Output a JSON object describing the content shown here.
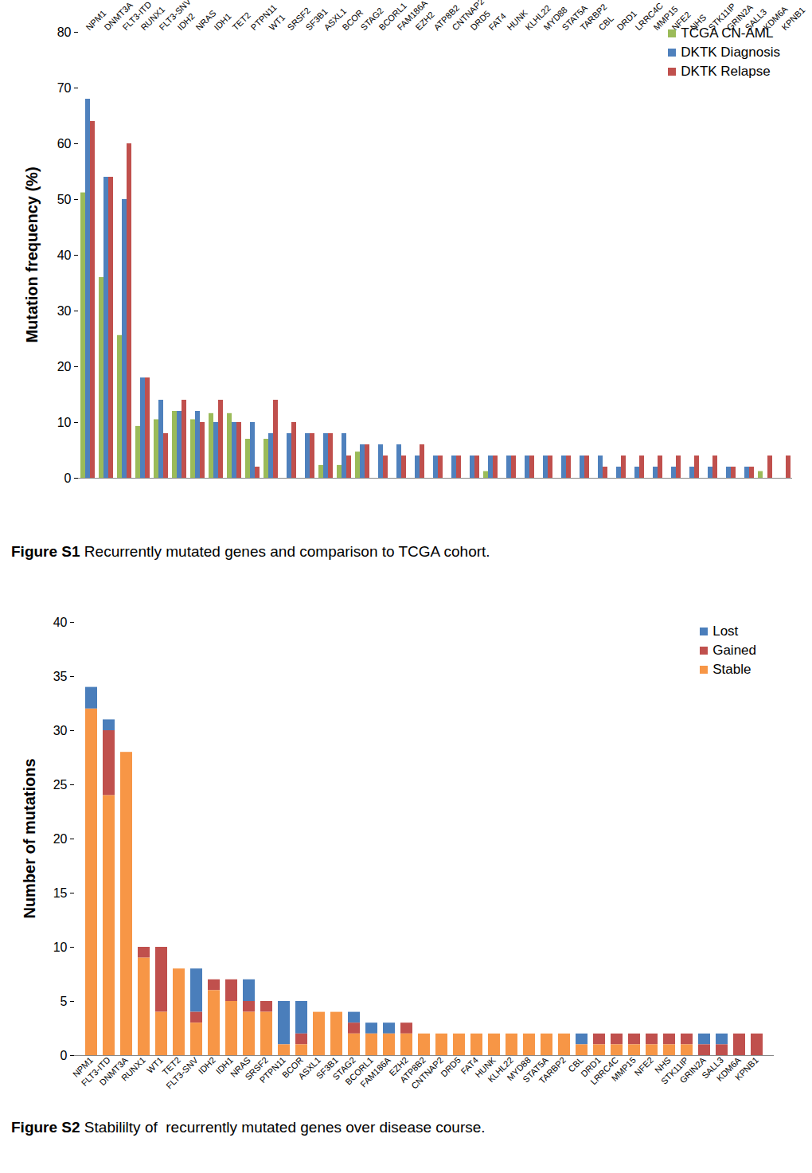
{
  "chart_data": [
    {
      "type": "bar",
      "title": "Figure S1 Recurrently mutated genes and comparison to TCGA cohort.",
      "y_label": "Mutation frequency (%)",
      "categories": [
        "NPM1",
        "DNMT3A",
        "FLT3-ITD",
        "RUNX1",
        "FLT3-SNV",
        "IDH2",
        "NRAS",
        "IDH1",
        "TET2",
        "PTPN11",
        "WT1",
        "SRSF2",
        "SF3B1",
        "ASXL1",
        "BCOR",
        "STAG2",
        "BCORL1",
        "FAM186A",
        "EZH2",
        "ATP8B2",
        "CNTNAP2",
        "DRD5",
        "FAT4",
        "HUNK",
        "KLHL22",
        "MYD88",
        "STAT5A",
        "TARBP2",
        "CBL",
        "DRD1",
        "LRRC4C",
        "MMP15",
        "NFE2",
        "NHS",
        "STK11IP",
        "GRIN2A",
        "SALL3",
        "KDM6A",
        "KPNB1"
      ],
      "series": [
        {
          "name": "TCGA CN-AML",
          "color": "#9bbb59",
          "values": [
            51.2,
            36,
            25.6,
            9.3,
            10.5,
            12,
            10.5,
            11.6,
            11.6,
            7,
            7,
            null,
            null,
            2.3,
            2.3,
            4.7,
            null,
            null,
            null,
            null,
            null,
            null,
            1.2,
            null,
            null,
            null,
            null,
            null,
            null,
            null,
            null,
            null,
            null,
            null,
            null,
            null,
            null,
            1.2,
            null
          ]
        },
        {
          "name": "DKTK Diagnosis",
          "color": "#4f81bd",
          "values": [
            68,
            54,
            50,
            18,
            14,
            12,
            12,
            10,
            10,
            10,
            8,
            8,
            8,
            8,
            8,
            6,
            6,
            6,
            4,
            4,
            4,
            4,
            4,
            4,
            4,
            4,
            4,
            4,
            4,
            2,
            2,
            2,
            2,
            2,
            2,
            2,
            2,
            null,
            null
          ]
        },
        {
          "name": "DKTK Relapse",
          "color": "#c0504d",
          "values": [
            64,
            54,
            60,
            18,
            8,
            14,
            10,
            14,
            10,
            2,
            14,
            10,
            8,
            8,
            4,
            6,
            4,
            4,
            6,
            4,
            4,
            4,
            4,
            4,
            4,
            4,
            4,
            4,
            2,
            4,
            4,
            4,
            4,
            4,
            4,
            2,
            2,
            4,
            4
          ]
        }
      ],
      "ylim": [
        0,
        80
      ],
      "yticks": [
        0,
        10,
        20,
        30,
        40,
        50,
        60,
        70,
        80
      ],
      "grid": false,
      "legend": "top-right"
    },
    {
      "type": "bar",
      "title": "Figure S2 Stabililty of  recurrently mutated genes over disease course.",
      "y_label": "Number of mutations",
      "categories": [
        "NPM1",
        "FLT3-ITD",
        "DNMT3A",
        "RUNX1",
        "WT1",
        "TET2",
        "FLT3-SNV",
        "IDH2",
        "IDH1",
        "NRAS",
        "SRSF2",
        "PTPN11",
        "BCOR",
        "ASXL1",
        "SF3B1",
        "STAG2",
        "BCORL1",
        "FAM186A",
        "EZH2",
        "ATP8B2",
        "CNTNAP2",
        "DRD5",
        "FAT4",
        "HUNK",
        "KLHL22",
        "MYD88",
        "STAT5A",
        "TARBP2",
        "CBL",
        "DRD1",
        "LRRC4C",
        "MMP15",
        "NFE2",
        "NHS",
        "STK11IP",
        "GRIN2A",
        "SALL3",
        "KDM6A",
        "KPNB1"
      ],
      "series": [
        {
          "name": "Lost",
          "color": "#4a7ebb",
          "values": [
            2,
            1,
            0,
            0,
            0,
            0,
            4,
            0,
            0,
            2,
            0,
            4,
            3,
            0,
            0,
            1,
            1,
            1,
            0,
            0,
            0,
            0,
            0,
            0,
            0,
            0,
            0,
            0,
            1,
            0,
            0,
            0,
            0,
            0,
            0,
            1,
            1,
            0,
            0
          ]
        },
        {
          "name": "Gained",
          "color": "#c0504d",
          "values": [
            0,
            6,
            0,
            1,
            6,
            0,
            1,
            1,
            2,
            1,
            1,
            0,
            1,
            0,
            0,
            1,
            0,
            0,
            1,
            0,
            0,
            0,
            0,
            0,
            0,
            0,
            0,
            0,
            0,
            1,
            1,
            1,
            1,
            1,
            1,
            1,
            1,
            2,
            2
          ]
        },
        {
          "name": "Stable",
          "color": "#f79646",
          "values": [
            32,
            24,
            28,
            9,
            4,
            8,
            3,
            6,
            5,
            4,
            4,
            1,
            1,
            4,
            4,
            2,
            2,
            2,
            2,
            2,
            2,
            2,
            2,
            2,
            2,
            2,
            2,
            2,
            1,
            1,
            1,
            1,
            1,
            1,
            1,
            0,
            0,
            0,
            0
          ]
        }
      ],
      "ylim": [
        0,
        40
      ],
      "yticks": [
        0,
        5,
        10,
        15,
        20,
        25,
        30,
        35,
        40
      ],
      "grid": false,
      "stacked": true,
      "legend": "top-right"
    }
  ]
}
